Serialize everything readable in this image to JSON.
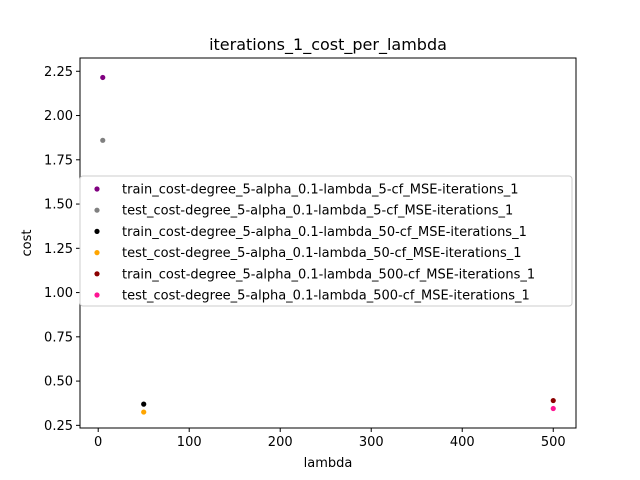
{
  "chart_data": {
    "type": "scatter",
    "title": "iterations_1_cost_per_lambda",
    "xlabel": "lambda",
    "ylabel": "cost",
    "xlim": [
      -20,
      525
    ],
    "ylim": [
      0.235,
      2.325
    ],
    "xticks": [
      0,
      100,
      200,
      300,
      400,
      500
    ],
    "yticks": [
      0.25,
      0.5,
      0.75,
      1.0,
      1.25,
      1.5,
      1.75,
      2.0,
      2.25
    ],
    "xtick_labels": [
      "0",
      "100",
      "200",
      "300",
      "400",
      "500"
    ],
    "ytick_labels": [
      "0.25",
      "0.50",
      "0.75",
      "1.00",
      "1.25",
      "1.50",
      "1.75",
      "2.00",
      "2.25"
    ],
    "grid": false,
    "legend_position": "center",
    "series": [
      {
        "name": "train_cost-degree_5-alpha_0.1-lambda_5-cf_MSE-iterations_1",
        "color": "#800080",
        "x": [
          5
        ],
        "y": [
          2.215
        ]
      },
      {
        "name": "test_cost-degree_5-alpha_0.1-lambda_5-cf_MSE-iterations_1",
        "color": "#808080",
        "x": [
          5
        ],
        "y": [
          1.86
        ]
      },
      {
        "name": "train_cost-degree_5-alpha_0.1-lambda_50-cf_MSE-iterations_1",
        "color": "#000000",
        "x": [
          50
        ],
        "y": [
          0.37
        ]
      },
      {
        "name": "test_cost-degree_5-alpha_0.1-lambda_50-cf_MSE-iterations_1",
        "color": "#ffa500",
        "x": [
          50
        ],
        "y": [
          0.325
        ]
      },
      {
        "name": "train_cost-degree_5-alpha_0.1-lambda_500-cf_MSE-iterations_1",
        "color": "#8b0000",
        "x": [
          500
        ],
        "y": [
          0.39
        ]
      },
      {
        "name": "test_cost-degree_5-alpha_0.1-lambda_500-cf_MSE-iterations_1",
        "color": "#ff1493",
        "x": [
          500
        ],
        "y": [
          0.345
        ]
      }
    ]
  }
}
